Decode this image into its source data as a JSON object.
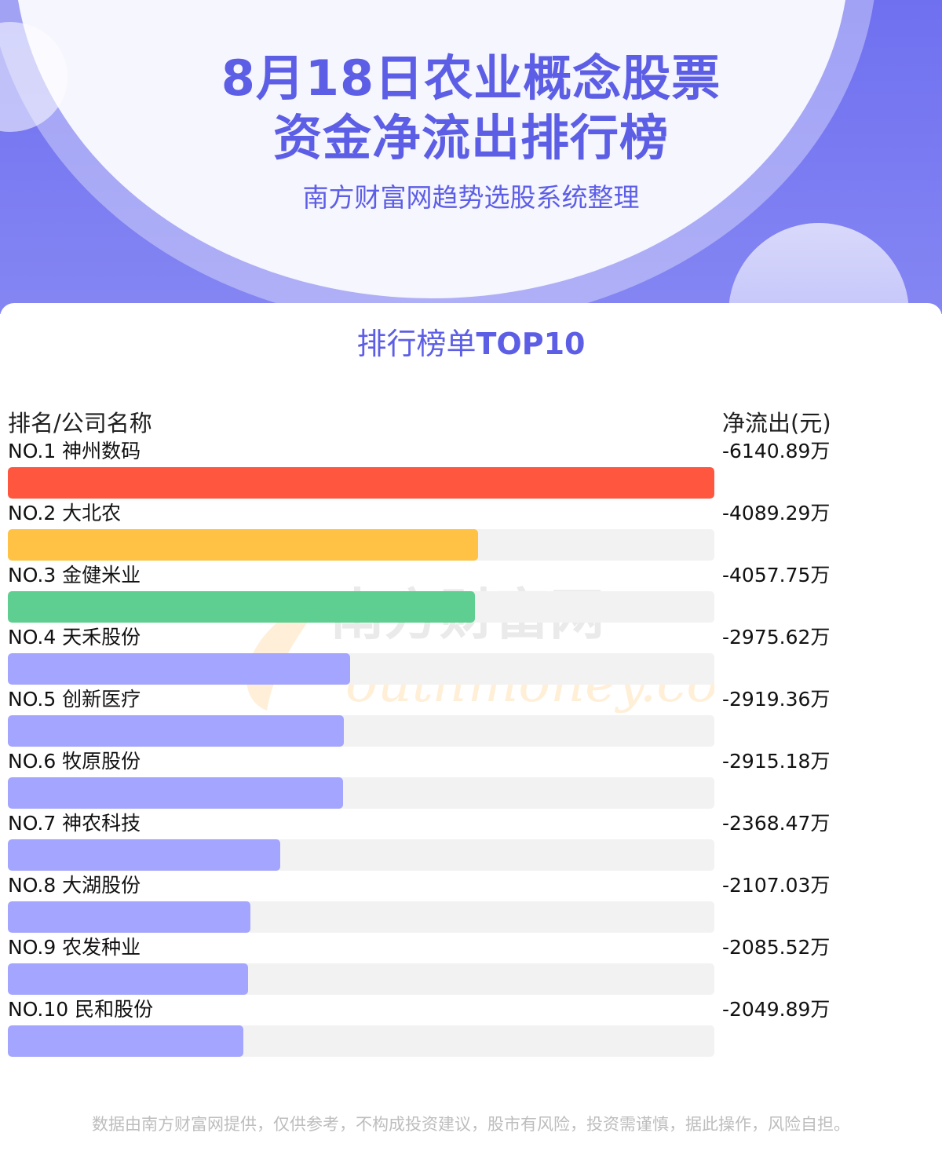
{
  "header": {
    "title_line1": "8月18日农业概念股票",
    "title_line2": "资金净流出排行榜",
    "subtitle": "南方财富网趋势选股系统整理"
  },
  "card": {
    "title_prefix": "排行榜单",
    "title_suffix": "TOP10"
  },
  "watermark": {
    "cn": "南方财富网",
    "en": "outhmoney.com"
  },
  "colors": {
    "accent": "#5d5ee6",
    "rank1": "#ff5640",
    "rank2": "#ffc244",
    "rank3": "#5fce91",
    "others": "#a3a5fe",
    "track": "#f3f2f2"
  },
  "chart_data": {
    "type": "bar",
    "orientation": "horizontal",
    "title": "8月18日农业概念股票资金净流出排行榜",
    "xlabel": "净流出(元)",
    "ylabel": "排名/公司名称",
    "unit": "万",
    "categories": [
      "NO.1 神州数码",
      "NO.2 大北农",
      "NO.3 金健米业",
      "NO.4 天禾股份",
      "NO.5 创新医疗",
      "NO.6 牧原股份",
      "NO.7 神农科技",
      "NO.8 大湖股份",
      "NO.9 农发种业",
      "NO.10 民和股份"
    ],
    "values": [
      -6140.89,
      -4089.29,
      -4057.75,
      -2975.62,
      -2919.36,
      -2915.18,
      -2368.47,
      -2107.03,
      -2085.52,
      -2049.89
    ],
    "value_labels": [
      "-6140.89万",
      "-4089.29万",
      "-4057.75万",
      "-2975.62万",
      "-2919.36万",
      "-2915.18万",
      "-2368.47万",
      "-2107.03万",
      "-2085.52万",
      "-2049.89万"
    ]
  },
  "disclaimer": "数据由南方财富网提供，仅供参考，不构成投资建议，股市有风险，投资需谨慎，据此操作，风险自担。"
}
